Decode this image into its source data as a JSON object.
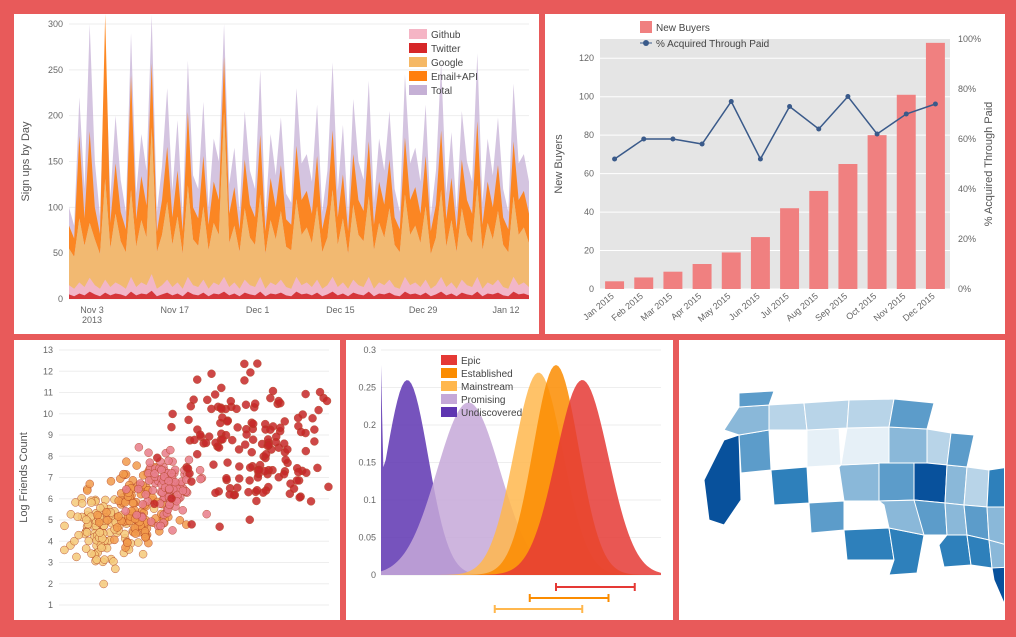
{
  "area_chart": {
    "type": "area",
    "y_title": "Sign ups by Day",
    "ylim": [
      0,
      300
    ],
    "ytick_step": 50,
    "x_labels": [
      "Nov 3\n2013",
      "Nov 17",
      "Dec 1",
      "Dec 15",
      "Dec 29",
      "Jan 12"
    ],
    "legend": [
      {
        "label": "Github",
        "color": "#f5b5c5"
      },
      {
        "label": "Twitter",
        "color": "#d62728"
      },
      {
        "label": "Google",
        "color": "#f5b865"
      },
      {
        "label": "Email+API",
        "color": "#ff7f0e"
      },
      {
        "label": "Total",
        "color": "#c5b0d5"
      }
    ],
    "background": "#ffffff",
    "grid_color": "#eeeeee",
    "n_points": 90,
    "series": {
      "twitter": [
        5,
        3,
        6,
        4,
        8,
        5,
        3,
        7,
        4,
        6,
        5,
        3,
        8,
        4,
        6,
        5,
        9,
        3,
        5,
        7,
        4,
        6,
        3,
        8,
        5,
        4,
        7,
        3,
        6,
        5,
        8,
        4,
        6,
        3,
        7,
        5,
        4,
        8,
        3,
        6,
        5,
        7,
        4,
        3,
        8,
        5,
        6,
        4,
        7,
        3,
        5,
        8,
        4,
        6,
        3,
        7,
        5,
        4,
        8,
        3,
        6,
        5,
        7,
        4,
        3,
        8,
        5,
        6,
        4,
        7,
        3,
        5,
        8,
        4,
        6,
        3,
        7,
        5,
        4,
        8,
        3,
        6,
        5,
        7,
        4,
        3,
        8,
        5,
        6,
        4
      ],
      "github": [
        10,
        8,
        12,
        9,
        15,
        10,
        8,
        14,
        9,
        12,
        10,
        8,
        16,
        9,
        12,
        10,
        18,
        8,
        10,
        14,
        9,
        12,
        8,
        16,
        10,
        9,
        14,
        8,
        12,
        10,
        16,
        9,
        12,
        8,
        14,
        10,
        9,
        16,
        8,
        12,
        10,
        14,
        9,
        8,
        16,
        10,
        12,
        9,
        14,
        8,
        10,
        16,
        9,
        12,
        8,
        14,
        10,
        9,
        16,
        8,
        12,
        10,
        14,
        9,
        8,
        16,
        10,
        12,
        9,
        14,
        8,
        10,
        16,
        9,
        12,
        8,
        14,
        10,
        9,
        16,
        8,
        12,
        10,
        14,
        9,
        8,
        16,
        10,
        12,
        9
      ],
      "google": [
        40,
        35,
        70,
        45,
        60,
        50,
        38,
        110,
        42,
        75,
        48,
        40,
        95,
        44,
        68,
        52,
        160,
        40,
        55,
        85,
        46,
        72,
        38,
        100,
        50,
        45,
        80,
        42,
        65,
        55,
        180,
        48,
        62,
        40,
        78,
        52,
        46,
        90,
        38,
        68,
        50,
        75,
        44,
        42,
        85,
        55,
        60,
        48,
        80,
        40,
        52,
        95,
        46,
        70,
        38,
        82,
        55,
        50,
        88,
        42,
        65,
        52,
        78,
        46,
        40,
        90,
        55,
        62,
        48,
        80,
        38,
        52,
        95,
        44,
        68,
        40,
        78,
        55,
        48,
        100,
        42,
        65,
        50,
        75,
        46,
        40,
        88,
        55,
        60,
        48
      ],
      "emailapi": [
        25,
        20,
        90,
        30,
        100,
        35,
        22,
        180,
        28,
        55,
        32,
        25,
        125,
        30,
        48,
        35,
        70,
        22,
        38,
        60,
        30,
        50,
        25,
        80,
        35,
        30,
        55,
        28,
        45,
        38,
        60,
        32,
        42,
        25,
        53,
        36,
        30,
        65,
        25,
        46,
        35,
        50,
        30,
        28,
        58,
        38,
        40,
        32,
        55,
        25,
        36,
        65,
        30,
        48,
        25,
        55,
        38,
        33,
        60,
        28,
        45,
        36,
        53,
        30,
        25,
        62,
        38,
        42,
        32,
        55,
        25,
        36,
        65,
        30,
        46,
        25,
        53,
        38,
        32,
        70,
        28,
        45,
        35,
        50,
        30,
        25,
        60,
        38,
        40,
        32
      ],
      "total": [
        100,
        80,
        220,
        120,
        300,
        150,
        90,
        280,
        110,
        200,
        130,
        95,
        290,
        115,
        180,
        140,
        310,
        95,
        145,
        230,
        118,
        195,
        90,
        260,
        135,
        120,
        215,
        100,
        175,
        150,
        300,
        125,
        165,
        95,
        205,
        140,
        120,
        250,
        90,
        180,
        135,
        198,
        115,
        105,
        230,
        148,
        158,
        128,
        212,
        95,
        140,
        258,
        118,
        190,
        90,
        218,
        150,
        130,
        238,
        105,
        175,
        140,
        205,
        120,
        95,
        245,
        148,
        165,
        128,
        212,
        90,
        140,
        258,
        115,
        182,
        95,
        205,
        150,
        128,
        268,
        105,
        175,
        135,
        198,
        120,
        95,
        235,
        148,
        158,
        128
      ]
    }
  },
  "bar_line_chart": {
    "type": "bar+line",
    "legend_bar": "New Buyers",
    "legend_line": "% Acquired Through Paid",
    "y_title": "New Buyers",
    "y2_title": "% Acquired Through Paid",
    "bar_color": "#f08080",
    "line_color": "#3a5a8a",
    "plot_bg": "#e5e5e5",
    "grid_color": "#ffffff",
    "ylim": [
      0,
      130
    ],
    "ytick_step": 20,
    "y2lim": [
      0,
      100
    ],
    "y2tick_step": 20,
    "y2_suffix": "%",
    "categories": [
      "Jan 2015",
      "Feb 2015",
      "Mar 2015",
      "Apr 2015",
      "May 2015",
      "Jun 2015",
      "Jul 2015",
      "Aug 2015",
      "Sep 2015",
      "Oct 2015",
      "Nov 2015",
      "Dec 2015"
    ],
    "bar_values": [
      4,
      6,
      9,
      13,
      19,
      27,
      42,
      51,
      65,
      80,
      101,
      128
    ],
    "line_values": [
      52,
      60,
      60,
      58,
      75,
      52,
      73,
      64,
      77,
      62,
      70,
      74
    ]
  },
  "scatter_chart": {
    "type": "scatter",
    "y_title": "Log Friends Count",
    "ylim": [
      1,
      13
    ],
    "ytick_step": 1,
    "xlim": [
      0,
      10
    ],
    "colors": [
      "#f5c97a",
      "#f29b4c",
      "#e87d8a",
      "#c62828"
    ],
    "marker_size": 4,
    "background": "#ffffff"
  },
  "density_chart": {
    "type": "density",
    "legend": [
      {
        "label": "Epic",
        "color": "#e53935"
      },
      {
        "label": "Established",
        "color": "#fb8c00"
      },
      {
        "label": "Mainstream",
        "color": "#ffb74d"
      },
      {
        "label": "Promising",
        "color": "#c5a8d8"
      },
      {
        "label": "Undiscovered",
        "color": "#5e35b1"
      }
    ],
    "ylim": [
      0,
      0.3
    ],
    "yticks": [
      0,
      0.05,
      0.1,
      0.15,
      0.2,
      0.25,
      0.3
    ],
    "xlim": [
      0,
      16
    ],
    "curves": [
      {
        "color": "#5e35b1",
        "mean": 1.5,
        "sd": 1.2,
        "peak": 0.26,
        "spike": true
      },
      {
        "color": "#c5a8d8",
        "mean": 5.0,
        "sd": 1.8,
        "peak": 0.23
      },
      {
        "color": "#ffb74d",
        "mean": 9.0,
        "sd": 1.4,
        "peak": 0.27
      },
      {
        "color": "#fb8c00",
        "mean": 10.0,
        "sd": 1.3,
        "peak": 0.28
      },
      {
        "color": "#e53935",
        "mean": 11.5,
        "sd": 1.5,
        "peak": 0.26
      }
    ],
    "rug_lines": [
      {
        "color": "#e53935",
        "x1": 10,
        "x2": 14.5
      },
      {
        "color": "#fb8c00",
        "x1": 8.5,
        "x2": 13
      },
      {
        "color": "#ffb74d",
        "x1": 6.5,
        "x2": 11.5
      }
    ]
  },
  "map_chart": {
    "type": "choropleth",
    "region": "USA",
    "color_scale": [
      "#e6f0f7",
      "#b8d4e8",
      "#8ab8d9",
      "#5c9cca",
      "#2e80bb",
      "#08519c"
    ],
    "background": "#ffffff"
  }
}
